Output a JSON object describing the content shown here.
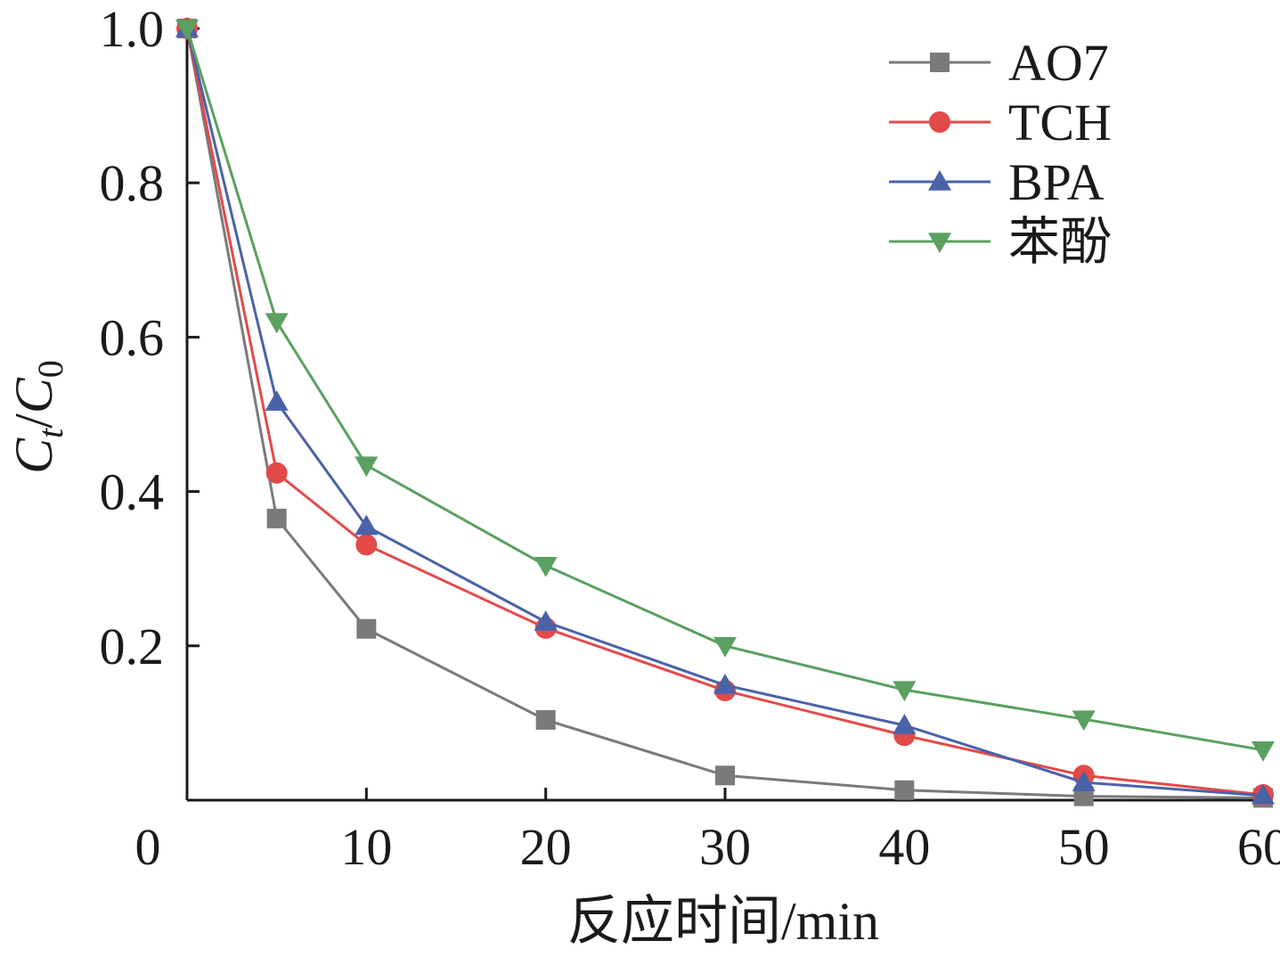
{
  "chart_data": {
    "type": "line",
    "xlabel": "反应时间/min",
    "ylabel": {
      "main": "C",
      "sub1": "t",
      "slash": "/",
      "main2": "C",
      "sub2": "0"
    },
    "xlim": [
      0,
      60
    ],
    "ylim": [
      0,
      1.0
    ],
    "xticks": [
      0,
      10,
      20,
      30,
      40,
      50,
      60
    ],
    "xtick_labels": [
      "0",
      "10",
      "20",
      "30",
      "40",
      "50",
      "60"
    ],
    "yticks": [
      0.2,
      0.4,
      0.6,
      0.8,
      1.0
    ],
    "ytick_labels": [
      "0.2",
      "0.4",
      "0.6",
      "0.8",
      "1.0"
    ],
    "grid": false,
    "legend_position": "top-right",
    "x": [
      0,
      5,
      10,
      20,
      30,
      40,
      50,
      60
    ],
    "series": [
      {
        "name": "AO7",
        "marker": "square",
        "color": "#7a7a7a",
        "values": [
          1.0,
          0.365,
          0.222,
          0.104,
          0.032,
          0.013,
          0.005,
          0.003
        ]
      },
      {
        "name": "TCH",
        "marker": "circle",
        "color": "#e34a4a",
        "values": [
          1.0,
          0.424,
          0.331,
          0.223,
          0.142,
          0.084,
          0.032,
          0.007
        ]
      },
      {
        "name": "BPA",
        "marker": "triangle-up",
        "color": "#4a62a8",
        "values": [
          1.0,
          0.516,
          0.355,
          0.231,
          0.149,
          0.097,
          0.023,
          0.006
        ]
      },
      {
        "name": "苯酚",
        "marker": "triangle-down",
        "color": "#5aa060",
        "values": [
          1.0,
          0.62,
          0.434,
          0.304,
          0.2,
          0.143,
          0.105,
          0.065
        ]
      }
    ]
  }
}
